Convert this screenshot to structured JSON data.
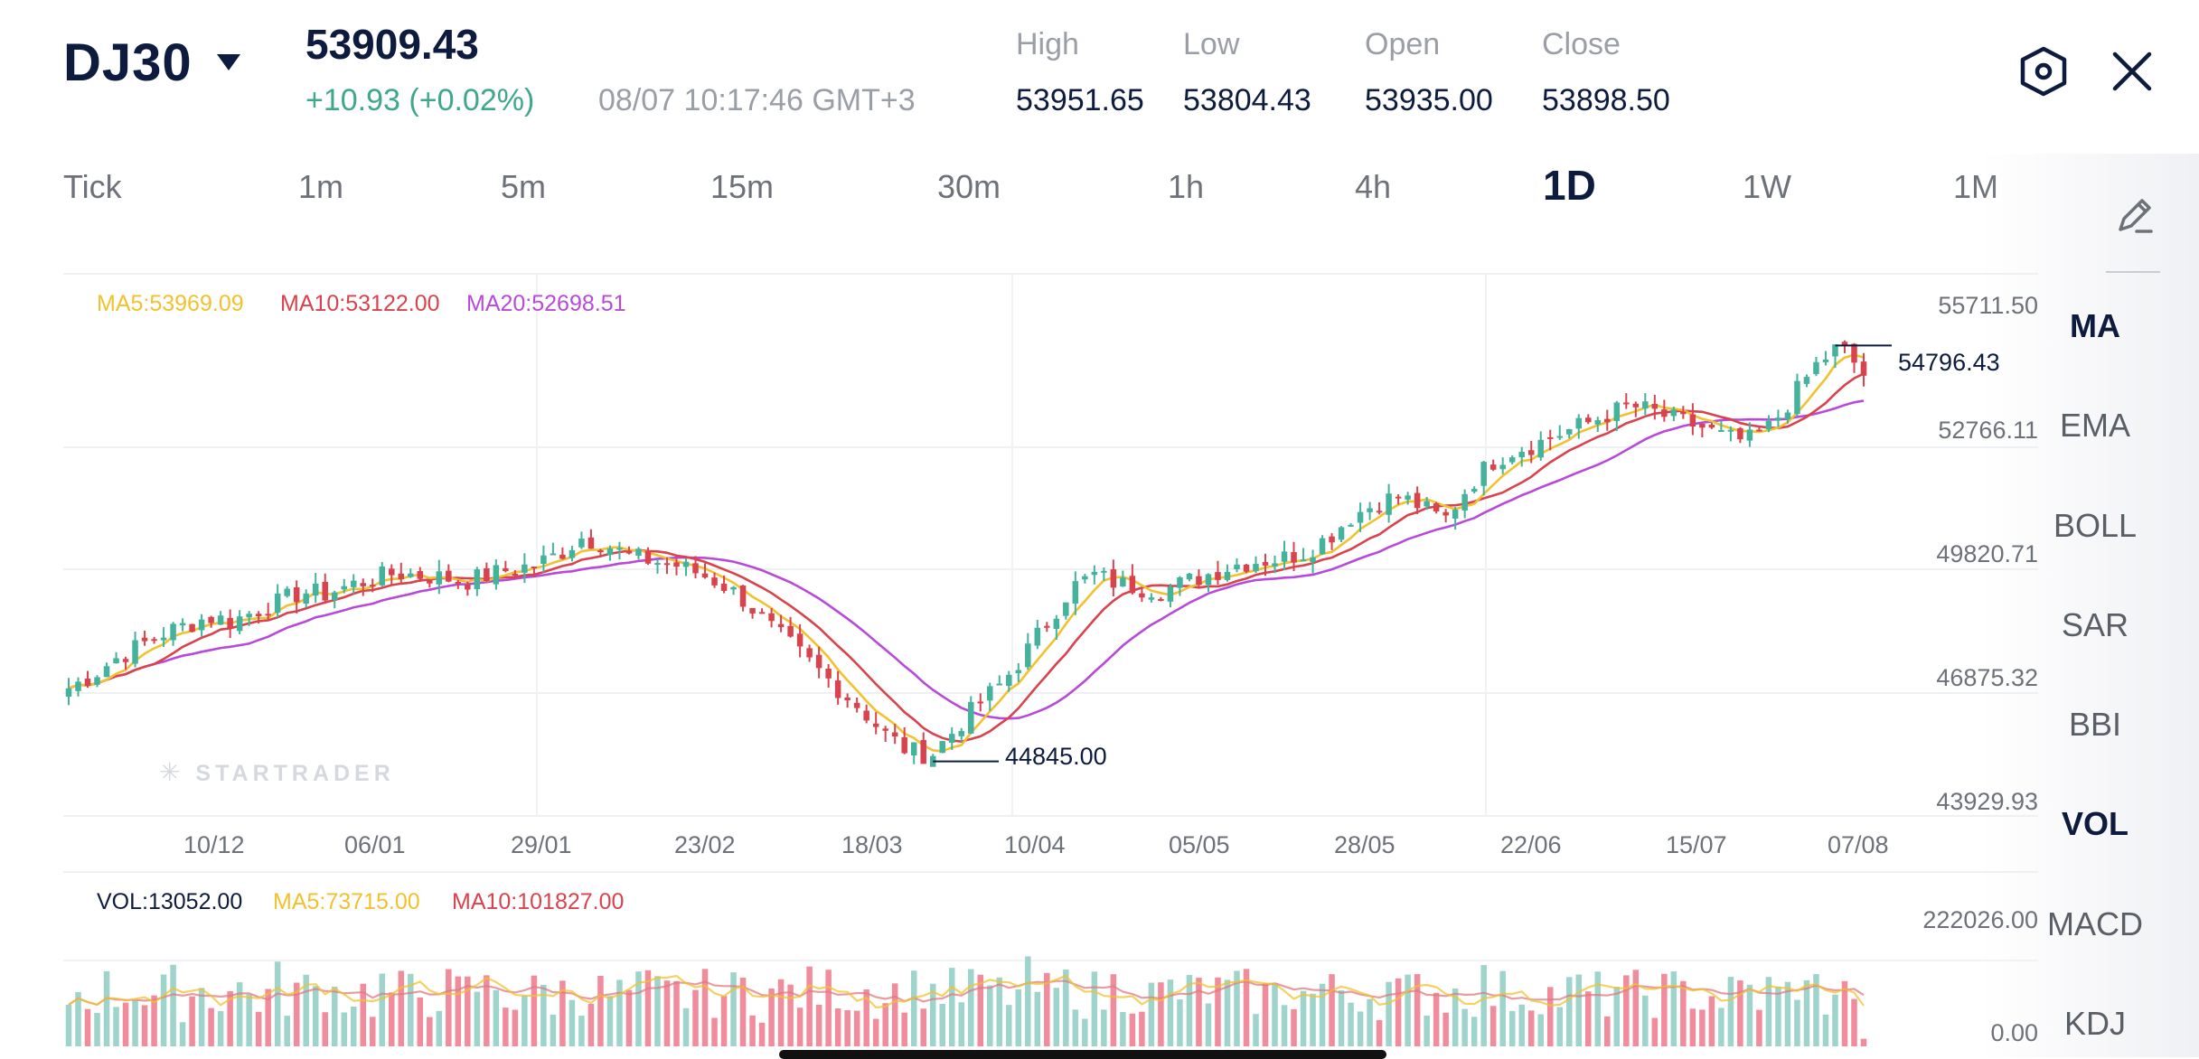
{
  "header": {
    "symbol": "DJ30",
    "price": "53909.43",
    "change": "+10.93 (+0.02%)",
    "datetime": "08/07 10:17:46 GMT+3",
    "stats": [
      {
        "label": "High",
        "value": "53951.65"
      },
      {
        "label": "Low",
        "value": "53804.43"
      },
      {
        "label": "Open",
        "value": "53935.00"
      },
      {
        "label": "Close",
        "value": "53898.50"
      }
    ],
    "icons": {
      "settings": "hexagon-settings-icon",
      "close": "close-icon"
    }
  },
  "timeframes": [
    {
      "label": "Tick",
      "active": false
    },
    {
      "label": "1m",
      "active": false
    },
    {
      "label": "5m",
      "active": false
    },
    {
      "label": "15m",
      "active": false
    },
    {
      "label": "30m",
      "active": false
    },
    {
      "label": "1h",
      "active": false
    },
    {
      "label": "4h",
      "active": false
    },
    {
      "label": "1D",
      "active": true
    },
    {
      "label": "1W",
      "active": false
    },
    {
      "label": "1M",
      "active": false
    }
  ],
  "sidebar": {
    "draw_icon": "pencil-draw-icon",
    "items": [
      {
        "label": "MA",
        "active": true
      },
      {
        "label": "EMA",
        "active": false
      },
      {
        "label": "BOLL",
        "active": false
      },
      {
        "label": "SAR",
        "active": false
      },
      {
        "label": "BBI",
        "active": false
      },
      {
        "label": "VOL",
        "active": true
      },
      {
        "label": "MACD",
        "active": false
      },
      {
        "label": "KDJ",
        "active": false
      }
    ]
  },
  "main_chart": {
    "ma_legend": [
      {
        "text": "MA5:53969.09",
        "color": "#f2c12e"
      },
      {
        "text": "MA10:53122.00",
        "color": "#d9434d"
      },
      {
        "text": "MA20:52698.51",
        "color": "#b84ad9"
      }
    ],
    "y_ticks": [
      "55711.50",
      "52766.11",
      "49820.71",
      "46875.32",
      "43929.93"
    ],
    "x_ticks": [
      "10/12",
      "06/01",
      "29/01",
      "23/02",
      "18/03",
      "10/04",
      "05/05",
      "28/05",
      "22/06",
      "15/07",
      "07/08"
    ],
    "high_marker": "54796.43",
    "low_marker": "44845.00",
    "watermark": "STARTRADER"
  },
  "volume_chart": {
    "legend": [
      {
        "text": "VOL:13052.00",
        "color": "#0d1b3e"
      },
      {
        "text": "MA5:73715.00",
        "color": "#f2c12e"
      },
      {
        "text": "MA10:101827.00",
        "color": "#d9434d"
      }
    ],
    "y_ticks": [
      "222026.00",
      "0.00"
    ]
  },
  "colors": {
    "up": "#45b29d",
    "down": "#d9434d",
    "up_volume": "#9fd4cc",
    "down_volume": "#f08c9c",
    "positive_text": "#3fa88a"
  },
  "chart_data": {
    "type": "candlestick",
    "title": "",
    "ylim": [
      43929.93,
      55711.5
    ],
    "x_ticks": [
      "10/12",
      "06/01",
      "29/01",
      "23/02",
      "18/03",
      "10/04",
      "05/05",
      "28/05",
      "22/06",
      "15/07",
      "07/08"
    ],
    "close_path": [
      46600,
      46900,
      47300,
      47600,
      47900,
      48100,
      48300,
      48200,
      48450,
      48650,
      48900,
      48850,
      49050,
      49200,
      49350,
      49300,
      49250,
      49150,
      49300,
      49450,
      49550,
      49800,
      50200,
      50050,
      49750,
      49650,
      49550,
      49350,
      49100,
      48700,
      48100,
      47600,
      47100,
      46600,
      46100,
      45500,
      45100,
      45000,
      45600,
      46200,
      46700,
      47400,
      48200,
      49000,
      49300,
      49100,
      49000,
      48950,
      49150,
      49350,
      49550,
      49650,
      49700,
      49850,
      50200,
      50700,
      51000,
      51200,
      50950,
      50600,
      51400,
      52000,
      52300,
      52450,
      52700,
      52900,
      53150,
      53350,
      53200,
      53000,
      52850,
      52600,
      52500,
      52850,
      53600,
      54350,
      54796.43,
      54100
    ],
    "x_count": 190,
    "marked_high": 54796.43,
    "marked_low": 44845.0,
    "moving_averages": {
      "MA5": 53969.09,
      "MA10": 53122.0,
      "MA20": 52698.51
    },
    "volume": {
      "ylim": [
        0,
        222026.0
      ],
      "last": 13052.0,
      "MA5": 73715.0,
      "MA10": 101827.0
    }
  }
}
